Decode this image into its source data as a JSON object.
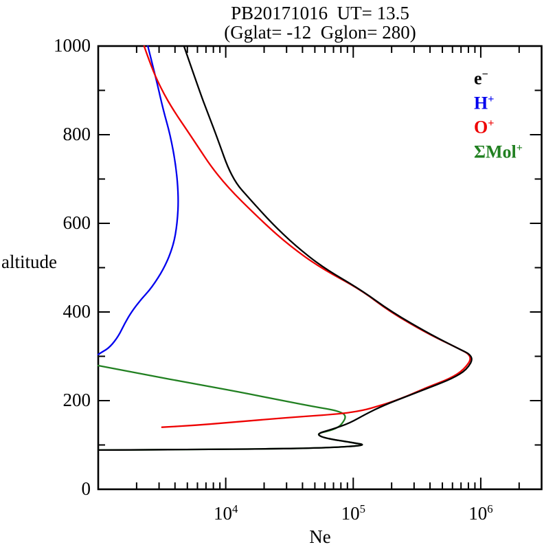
{
  "chart_data": {
    "type": "line",
    "title": "PB20171016  UT= 13.5",
    "subtitle": "(Gglat= -12  Gglon= 280)",
    "xlabel": "Ne",
    "ylabel": "altitude",
    "grid": false,
    "frame_color": "#000000",
    "x_axis": {
      "scale": "log",
      "min": 1000,
      "max": 3000000,
      "major_ticks": [
        10000,
        100000,
        1000000
      ],
      "major_tick_labels": [
        {
          "base": "10",
          "exp": "4"
        },
        {
          "base": "10",
          "exp": "5"
        },
        {
          "base": "10",
          "exp": "6"
        }
      ]
    },
    "y_axis": {
      "scale": "linear",
      "min": 0,
      "max": 1000,
      "major_step": 200,
      "minor_step": 100,
      "tick_labels": [
        "0",
        "200",
        "400",
        "600",
        "800",
        "1000"
      ]
    },
    "legend": {
      "position": "upper-right",
      "items": [
        {
          "base": "e",
          "sup": "−",
          "color": "#000000"
        },
        {
          "base": "H",
          "sup": "+",
          "color": "#0000ee"
        },
        {
          "base": "O",
          "sup": "+",
          "color": "#ee0000"
        },
        {
          "base": "ΣMol",
          "sup": "+",
          "color": "#218021"
        }
      ]
    },
    "series": [
      {
        "name": "Mol+",
        "color": "#218021",
        "points": [
          [
            1000,
            279
          ],
          [
            2400,
            258
          ],
          [
            5450,
            239
          ],
          [
            13000,
            219
          ],
          [
            28000,
            200
          ],
          [
            50000,
            186
          ],
          [
            76000,
            177
          ],
          [
            89000,
            166
          ],
          [
            81000,
            146
          ],
          [
            74000,
            138
          ],
          [
            65000,
            132
          ],
          [
            51000,
            125
          ],
          [
            60000,
            115
          ],
          [
            100000,
            105
          ],
          [
            126000,
            100
          ],
          [
            89000,
            96
          ],
          [
            52000,
            93
          ],
          [
            20000,
            91
          ],
          [
            6300,
            90
          ],
          [
            2000,
            89
          ],
          [
            1000,
            88.5
          ]
        ]
      },
      {
        "name": "H+",
        "color": "#0000ee",
        "points": [
          [
            2450,
            1000
          ],
          [
            2880,
            920
          ],
          [
            3240,
            855
          ],
          [
            3670,
            800
          ],
          [
            4070,
            730
          ],
          [
            4270,
            660
          ],
          [
            4170,
            600
          ],
          [
            3890,
            550
          ],
          [
            3310,
            500
          ],
          [
            2630,
            455
          ],
          [
            2190,
            430
          ],
          [
            1820,
            400
          ],
          [
            1620,
            375
          ],
          [
            1440,
            345
          ],
          [
            1230,
            320
          ],
          [
            1050,
            308
          ],
          [
            1000,
            304
          ]
        ]
      },
      {
        "name": "O+",
        "color": "#ee0000",
        "points": [
          [
            2290,
            1000
          ],
          [
            2630,
            950
          ],
          [
            3160,
            900
          ],
          [
            3890,
            855
          ],
          [
            5250,
            800
          ],
          [
            8900,
            700
          ],
          [
            20000,
            600
          ],
          [
            31600,
            550
          ],
          [
            55000,
            500
          ],
          [
            115000,
            450
          ],
          [
            195000,
            400
          ],
          [
            390000,
            350
          ],
          [
            645000,
            320
          ],
          [
            870000,
            300
          ],
          [
            740000,
            270
          ],
          [
            575000,
            250
          ],
          [
            380000,
            230
          ],
          [
            316000,
            220
          ],
          [
            263000,
            210
          ],
          [
            200000,
            197
          ],
          [
            158000,
            188
          ],
          [
            120000,
            178
          ],
          [
            79000,
            170
          ],
          [
            35000,
            163
          ],
          [
            17800,
            156
          ],
          [
            10000,
            150
          ],
          [
            5600,
            144
          ],
          [
            3160,
            140
          ]
        ]
      },
      {
        "name": "e-",
        "color": "#000000",
        "points": [
          [
            4700,
            1000
          ],
          [
            6200,
            900
          ],
          [
            7200,
            850
          ],
          [
            8400,
            800
          ],
          [
            11200,
            700
          ],
          [
            16000,
            650
          ],
          [
            23000,
            600
          ],
          [
            35000,
            550
          ],
          [
            58000,
            500
          ],
          [
            115000,
            450
          ],
          [
            200000,
            400
          ],
          [
            400000,
            350
          ],
          [
            640000,
            320
          ],
          [
            890000,
            300
          ],
          [
            780000,
            270
          ],
          [
            600000,
            250
          ],
          [
            400000,
            230
          ],
          [
            265000,
            210
          ],
          [
            175000,
            190
          ],
          [
            126000,
            170
          ],
          [
            95000,
            150
          ],
          [
            68000,
            135
          ],
          [
            51000,
            125
          ],
          [
            60000,
            115
          ],
          [
            100000,
            105
          ],
          [
            126000,
            100
          ],
          [
            89000,
            96
          ],
          [
            52000,
            93
          ],
          [
            20000,
            91
          ],
          [
            6300,
            90
          ],
          [
            2000,
            89
          ],
          [
            1000,
            88.5
          ]
        ]
      }
    ]
  }
}
